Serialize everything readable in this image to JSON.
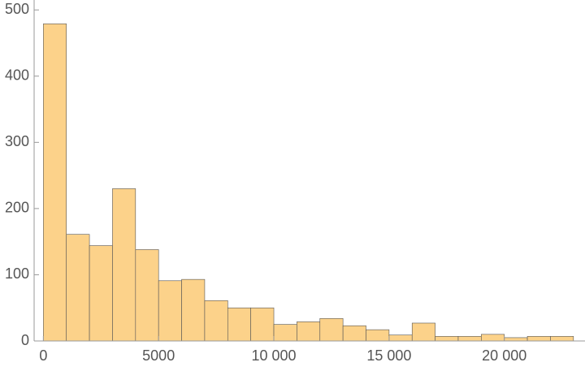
{
  "chart_data": {
    "type": "histogram",
    "bins": [
      0,
      1000,
      2000,
      3000,
      4000,
      5000,
      6000,
      7000,
      8000,
      9000,
      10000,
      11000,
      12000,
      13000,
      14000,
      15000,
      16000,
      17000,
      18000,
      19000,
      20000,
      21000,
      22000,
      23000
    ],
    "values": [
      479,
      161,
      144,
      230,
      138,
      91,
      93,
      61,
      50,
      50,
      25,
      29,
      34,
      23,
      17,
      9,
      27,
      7,
      7,
      10,
      5,
      7,
      7
    ],
    "color": "#fcd28a",
    "xlim": [
      -400,
      23500
    ],
    "ylim": [
      0,
      515
    ],
    "xticks": [
      0,
      5000,
      {
        "value": 10000,
        "label": "10 000"
      },
      {
        "value": 15000,
        "label": "15 000"
      },
      {
        "value": 20000,
        "label": "20 000"
      }
    ],
    "yticks": [
      0,
      100,
      200,
      300,
      400,
      500
    ]
  }
}
